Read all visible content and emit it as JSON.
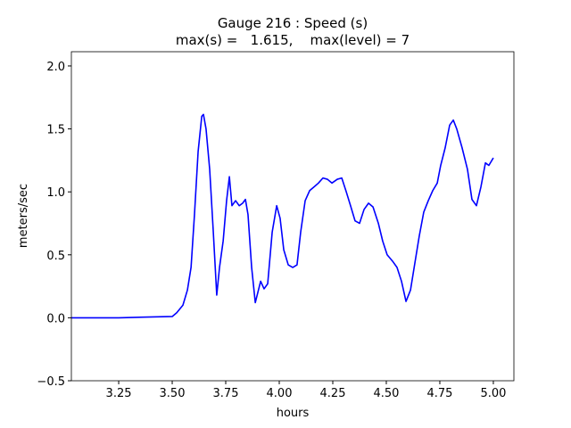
{
  "chart_data": {
    "type": "line",
    "title": "Gauge 216 : Speed (s)",
    "subtitle": "max(s) =   1.615,    max(level) = 7",
    "x_label": "hours",
    "y_label": "meters/sec",
    "xlim": [
      3.029,
      5.096
    ],
    "ylim": [
      -0.5,
      2.113
    ],
    "xticks": [
      3.25,
      {
        "value": 3.5,
        "label": "3.50"
      },
      3.75,
      {
        "value": 4.0,
        "label": "4.00"
      },
      4.25,
      {
        "value": 4.5,
        "label": "4.50"
      },
      4.75,
      {
        "value": 5.0,
        "label": "5.00"
      }
    ],
    "yticks": [
      {
        "value": -0.5,
        "label": "−0.5"
      },
      {
        "value": 0,
        "label": "0.0"
      },
      0.5,
      {
        "value": 1.0,
        "label": "1.0"
      },
      1.5,
      {
        "value": 2.0,
        "label": "2.0"
      }
    ],
    "grid": false,
    "series": [
      {
        "color": "#0000ff",
        "x": [
          3.029,
          3.25,
          3.363,
          3.5,
          3.521,
          3.55,
          3.571,
          3.588,
          3.604,
          3.621,
          3.638,
          3.646,
          3.658,
          3.675,
          3.692,
          3.708,
          3.721,
          3.738,
          3.754,
          3.767,
          3.779,
          3.796,
          3.813,
          3.829,
          3.842,
          3.854,
          3.871,
          3.888,
          3.913,
          3.929,
          3.946,
          3.967,
          3.988,
          4.004,
          4.021,
          4.042,
          4.063,
          4.083,
          4.1,
          4.121,
          4.142,
          4.163,
          4.183,
          4.204,
          4.225,
          4.246,
          4.271,
          4.292,
          4.313,
          4.333,
          4.354,
          4.375,
          4.396,
          4.417,
          4.438,
          4.463,
          4.483,
          4.504,
          4.529,
          4.55,
          4.571,
          4.592,
          4.613,
          4.633,
          4.654,
          4.675,
          4.696,
          4.717,
          4.738,
          4.754,
          4.775,
          4.796,
          4.813,
          4.829,
          4.854,
          4.879,
          4.9,
          4.921,
          4.942,
          4.963,
          4.979,
          5.0
        ],
        "values": [
          0.0,
          0.0,
          0.005,
          0.01,
          0.04,
          0.1,
          0.22,
          0.4,
          0.82,
          1.32,
          1.6,
          1.615,
          1.5,
          1.18,
          0.68,
          0.18,
          0.4,
          0.61,
          0.93,
          1.12,
          0.89,
          0.93,
          0.89,
          0.91,
          0.94,
          0.82,
          0.4,
          0.12,
          0.29,
          0.23,
          0.27,
          0.68,
          0.89,
          0.79,
          0.54,
          0.42,
          0.4,
          0.42,
          0.68,
          0.93,
          1.01,
          1.04,
          1.07,
          1.11,
          1.1,
          1.07,
          1.1,
          1.11,
          1.0,
          0.89,
          0.77,
          0.75,
          0.86,
          0.91,
          0.88,
          0.75,
          0.61,
          0.5,
          0.45,
          0.4,
          0.29,
          0.13,
          0.22,
          0.43,
          0.65,
          0.84,
          0.93,
          1.01,
          1.07,
          1.21,
          1.35,
          1.53,
          1.57,
          1.5,
          1.35,
          1.18,
          0.94,
          0.89,
          1.04,
          1.23,
          1.21,
          1.27
        ]
      }
    ]
  }
}
